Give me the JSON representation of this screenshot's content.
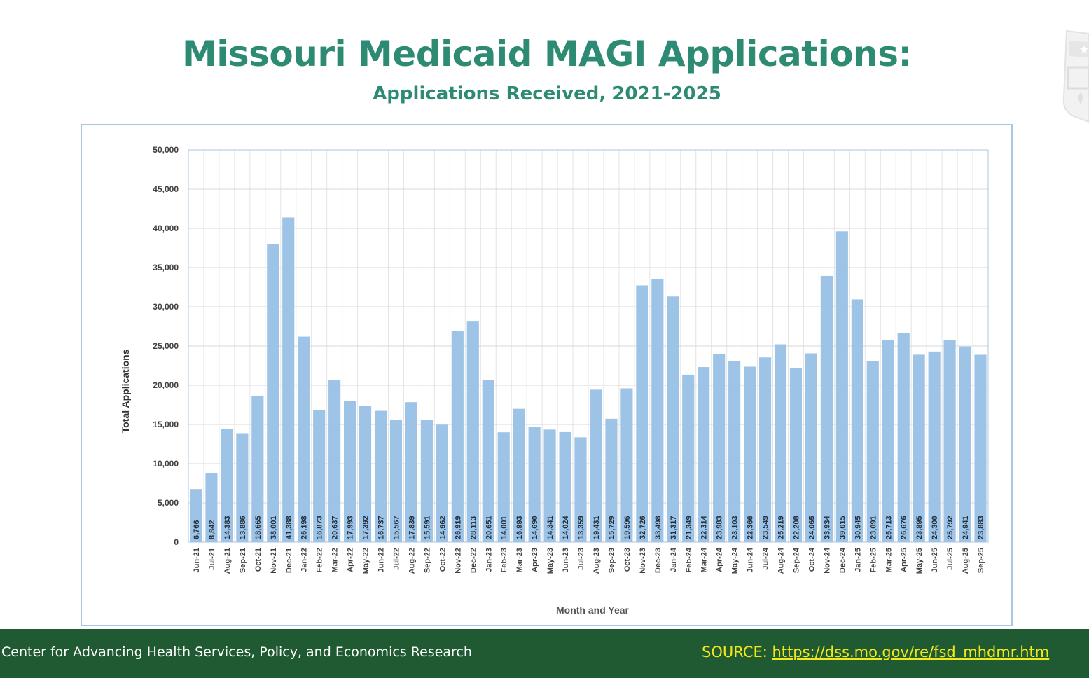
{
  "page": {
    "title": "Missouri Medicaid MAGI Applications:",
    "subtitle": "Applications Received, 2021-2025"
  },
  "footer": {
    "left_text": "Center for Advancing Health Services, Policy, and Economics Research",
    "source_label": "SOURCE: ",
    "source_link": "https://dss.mo.gov/re/fsd_mhdmr.htm"
  },
  "colors": {
    "title": "#2e8b73",
    "bar": "#9dc3e6",
    "footer_bg": "#1f5a32",
    "source_text": "#f2e81a"
  },
  "logo": {
    "icon": "shield-logo-icon"
  },
  "chart_data": {
    "type": "bar",
    "title": "",
    "xlabel": "Month and Year",
    "ylabel": "Total Applications",
    "ylim": [
      0,
      50000
    ],
    "yticks": [
      "0",
      "5,000",
      "10,000",
      "15,000",
      "20,000",
      "25,000",
      "30,000",
      "35,000",
      "40,000",
      "45,000",
      "50,000"
    ],
    "grid": true,
    "legend": "none",
    "categories": [
      "Jun-21",
      "Jul-21",
      "Aug-21",
      "Sep-21",
      "Oct-21",
      "Nov-21",
      "Dec-21",
      "Jan-22",
      "Feb-22",
      "Mar-22",
      "Apr-22",
      "May-22",
      "Jun-22",
      "Jul-22",
      "Aug-22",
      "Sep-22",
      "Oct-22",
      "Nov-22",
      "Dec-22",
      "Jan-23",
      "Feb-23",
      "Mar-23",
      "Apr-23",
      "May-23",
      "Jun-23",
      "Jul-23",
      "Aug-23",
      "Sep-23",
      "Oct-23",
      "Nov-23",
      "Dec-23",
      "Jan-24",
      "Feb-24",
      "Mar-24",
      "Apr-24",
      "May-24",
      "Jun-24",
      "Jul-24",
      "Aug-24",
      "Sep-24",
      "Oct-24",
      "Nov-24",
      "Dec-24",
      "Jan-25",
      "Feb-25",
      "Mar-25",
      "Apr-25",
      "May-25",
      "Jun-25",
      "Jul-25",
      "Aug-25",
      "Sep-25"
    ],
    "values": [
      6766,
      8842,
      14383,
      13886,
      18665,
      38001,
      41388,
      26198,
      16873,
      20637,
      17993,
      17392,
      16737,
      15567,
      17839,
      15591,
      14962,
      26919,
      28113,
      20651,
      14001,
      16993,
      14690,
      14341,
      14024,
      13359,
      19431,
      15729,
      19596,
      32726,
      33498,
      31317,
      21349,
      22314,
      23983,
      23103,
      22366,
      23549,
      25219,
      22208,
      24065,
      33934,
      39615,
      30945,
      23091,
      25713,
      26676,
      23895,
      24300,
      25792,
      24941,
      23883
    ],
    "data_labels": [
      "6,766",
      "8,842",
      "14,383",
      "13,886",
      "18,665",
      "38,001",
      "41,388",
      "26,198",
      "16,873",
      "20,637",
      "17,993",
      "17,392",
      "16,737",
      "15,567",
      "17,839",
      "15,591",
      "14,962",
      "26,919",
      "28,113",
      "20,651",
      "14,001",
      "16,993",
      "14,690",
      "14,341",
      "14,024",
      "13,359",
      "19,431",
      "15,729",
      "19,596",
      "32,726",
      "33,498",
      "31,317",
      "21,349",
      "22,314",
      "23,983",
      "23,103",
      "22,366",
      "23,549",
      "25,219",
      "22,208",
      "24,065",
      "33,934",
      "39,615",
      "30,945",
      "23,091",
      "25,713",
      "26,676",
      "23,895",
      "24,300",
      "25,792",
      "24,941",
      "23,883"
    ]
  }
}
